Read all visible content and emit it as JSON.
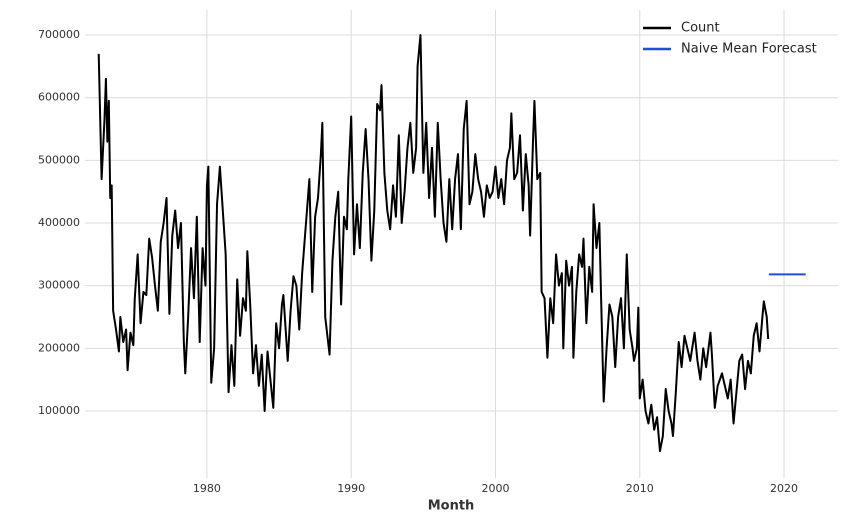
{
  "chart_data": {
    "type": "line",
    "xlabel": "Month",
    "xlim": [
      1971.55,
      2023.74
    ],
    "ylim": [
      -7000,
      740000
    ],
    "xticks": [
      1980,
      1990,
      2000,
      2010,
      2020
    ],
    "yticks": [
      100000,
      200000,
      300000,
      400000,
      500000,
      600000,
      700000
    ],
    "grid": true,
    "legend": "upper right",
    "series": [
      {
        "name": "Count",
        "color": "#000000",
        "x": [
          1972.5,
          1972.7,
          1972.9,
          1973.0,
          1973.1,
          1973.2,
          1973.3,
          1973.4,
          1973.5,
          1973.7,
          1973.9,
          1974.0,
          1974.2,
          1974.4,
          1974.5,
          1974.7,
          1974.9,
          1975.0,
          1975.2,
          1975.4,
          1975.6,
          1975.8,
          1976.0,
          1976.2,
          1976.4,
          1976.6,
          1976.8,
          1977.0,
          1977.2,
          1977.4,
          1977.6,
          1977.8,
          1978.0,
          1978.2,
          1978.4,
          1978.5,
          1978.7,
          1978.9,
          1979.1,
          1979.3,
          1979.5,
          1979.7,
          1979.9,
          1980.0,
          1980.1,
          1980.3,
          1980.5,
          1980.7,
          1980.9,
          1981.1,
          1981.3,
          1981.5,
          1981.7,
          1981.9,
          1982.1,
          1982.3,
          1982.5,
          1982.7,
          1982.8,
          1983.0,
          1983.2,
          1983.4,
          1983.6,
          1983.8,
          1984.0,
          1984.2,
          1984.4,
          1984.6,
          1984.8,
          1985.0,
          1985.2,
          1985.3,
          1985.6,
          1985.8,
          1986.0,
          1986.2,
          1986.4,
          1986.6,
          1986.8,
          1987.1,
          1987.3,
          1987.5,
          1987.7,
          1987.9,
          1988.0,
          1988.2,
          1988.5,
          1988.7,
          1988.9,
          1989.1,
          1989.3,
          1989.5,
          1989.7,
          1989.8,
          1990.0,
          1990.2,
          1990.4,
          1990.6,
          1990.8,
          1991.0,
          1991.2,
          1991.4,
          1991.6,
          1991.8,
          1992.0,
          1992.1,
          1992.3,
          1992.5,
          1992.7,
          1992.9,
          1993.1,
          1993.3,
          1993.5,
          1993.7,
          1993.9,
          1994.1,
          1994.3,
          1994.5,
          1994.6,
          1994.8,
          1995.0,
          1995.2,
          1995.4,
          1995.6,
          1995.8,
          1996.0,
          1996.2,
          1996.4,
          1996.6,
          1996.8,
          1997.0,
          1997.2,
          1997.4,
          1997.6,
          1997.8,
          1998.0,
          1998.2,
          1998.4,
          1998.6,
          1998.8,
          1999.0,
          1999.2,
          1999.4,
          1999.6,
          1999.8,
          2000.0,
          2000.2,
          2000.4,
          2000.6,
          2000.8,
          2001.0,
          2001.1,
          2001.3,
          2001.5,
          2001.7,
          2001.9,
          2002.1,
          2002.3,
          2002.4,
          2002.6,
          2002.7,
          2002.9,
          2003.1,
          2003.2,
          2003.4,
          2003.6,
          2003.8,
          2004.0,
          2004.2,
          2004.4,
          2004.6,
          2004.7,
          2004.9,
          2005.1,
          2005.3,
          2005.4,
          2005.6,
          2005.8,
          2006.0,
          2006.1,
          2006.3,
          2006.5,
          2006.7,
          2006.8,
          2007.0,
          2007.2,
          2007.3,
          2007.5,
          2007.7,
          2007.9,
          2008.1,
          2008.3,
          2008.5,
          2008.7,
          2008.9,
          2009.1,
          2009.3,
          2009.5,
          2009.6,
          2009.8,
          2009.9,
          2010.0,
          2010.2,
          2010.4,
          2010.6,
          2010.8,
          2011.0,
          2011.2,
          2011.4,
          2011.6,
          2011.8,
          2012.0,
          2012.2,
          2012.3,
          2012.5,
          2012.7,
          2012.9,
          2013.1,
          2013.3,
          2013.5,
          2013.7,
          2013.8,
          2014.0,
          2014.2,
          2014.4,
          2014.6,
          2014.9,
          2015.0,
          2015.2,
          2015.4,
          2015.7,
          2015.9,
          2016.1,
          2016.3,
          2016.5,
          2016.7,
          2016.9,
          2017.1,
          2017.3,
          2017.5,
          2017.7,
          2017.9,
          2018.1,
          2018.3,
          2018.5,
          2018.6,
          2018.8,
          2018.9
        ],
        "values": [
          670000,
          470000,
          565000,
          630000,
          530000,
          595000,
          440000,
          460000,
          260000,
          230000,
          195000,
          250000,
          210000,
          230000,
          165000,
          225000,
          205000,
          280000,
          350000,
          240000,
          290000,
          285000,
          375000,
          345000,
          300000,
          260000,
          370000,
          400000,
          440000,
          255000,
          380000,
          420000,
          360000,
          400000,
          210000,
          160000,
          250000,
          360000,
          280000,
          410000,
          210000,
          360000,
          300000,
          460000,
          490000,
          145000,
          200000,
          430000,
          490000,
          420000,
          350000,
          130000,
          205000,
          140000,
          310000,
          220000,
          280000,
          260000,
          355000,
          270000,
          160000,
          205000,
          140000,
          190000,
          100000,
          195000,
          150000,
          105000,
          240000,
          200000,
          270000,
          285000,
          180000,
          260000,
          315000,
          300000,
          230000,
          320000,
          380000,
          470000,
          290000,
          410000,
          440000,
          510000,
          560000,
          250000,
          190000,
          340000,
          410000,
          450000,
          270000,
          410000,
          390000,
          470000,
          570000,
          350000,
          430000,
          360000,
          480000,
          550000,
          470000,
          340000,
          420000,
          590000,
          580000,
          620000,
          480000,
          420000,
          390000,
          460000,
          410000,
          540000,
          400000,
          450000,
          520000,
          560000,
          480000,
          520000,
          650000,
          700000,
          480000,
          560000,
          440000,
          520000,
          410000,
          560000,
          470000,
          400000,
          370000,
          470000,
          390000,
          470000,
          510000,
          390000,
          550000,
          595000,
          430000,
          450000,
          510000,
          470000,
          450000,
          410000,
          460000,
          440000,
          450000,
          490000,
          440000,
          470000,
          430000,
          500000,
          520000,
          575000,
          470000,
          480000,
          540000,
          420000,
          510000,
          460000,
          380000,
          530000,
          595000,
          470000,
          480000,
          290000,
          280000,
          185000,
          280000,
          240000,
          350000,
          300000,
          320000,
          200000,
          340000,
          300000,
          330000,
          185000,
          290000,
          350000,
          330000,
          375000,
          240000,
          330000,
          290000,
          430000,
          360000,
          400000,
          300000,
          115000,
          200000,
          270000,
          250000,
          170000,
          250000,
          280000,
          200000,
          350000,
          230000,
          200000,
          180000,
          200000,
          265000,
          120000,
          150000,
          100000,
          80000,
          110000,
          70000,
          90000,
          36000,
          60000,
          135000,
          100000,
          80000,
          60000,
          130000,
          210000,
          170000,
          220000,
          200000,
          180000,
          210000,
          225000,
          180000,
          150000,
          200000,
          170000,
          225000,
          190000,
          105000,
          140000,
          160000,
          140000,
          120000,
          150000,
          80000,
          130000,
          180000,
          190000,
          135000,
          180000,
          160000,
          220000,
          240000,
          195000,
          250000,
          275000,
          250000,
          215000
        ]
      },
      {
        "name": "Naive Mean Forecast",
        "color": "#1f4fd8",
        "x": [
          2018.95,
          2021.5
        ],
        "values": [
          318000,
          318000
        ]
      }
    ]
  }
}
